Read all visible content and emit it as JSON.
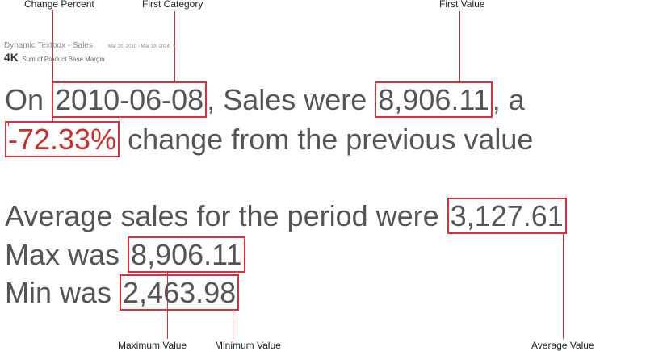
{
  "callouts": {
    "change_percent": "Change Percent",
    "first_category": "First Category",
    "first_value": "First Value",
    "maximum_value": "Maximum Value",
    "minimum_value": "Minimum Value",
    "average_value": "Average Value"
  },
  "header": {
    "title": "Dynamic Textbox - Sales",
    "date_range": "Mar 20, 2010 - Mar 19, 2014",
    "kpi_value": "4K",
    "kpi_label": "Sum of Product Base Margin"
  },
  "sentence1": {
    "prefix": "On ",
    "category": "2010-06-08",
    "middle": ", Sales were ",
    "value": "8,906.11",
    "suffix": ", a"
  },
  "sentence2": {
    "percent": "-72.33%",
    "suffix": " change from the previous value"
  },
  "average": {
    "prefix": "Average sales for the period were ",
    "value": "3,127.61"
  },
  "max": {
    "prefix": "Max was ",
    "value": "8,906.11"
  },
  "min": {
    "prefix": "Min was ",
    "value": "2,463.98"
  },
  "colors": {
    "accent": "#d9313c",
    "negative": "#c8302c",
    "text": "#555555"
  }
}
